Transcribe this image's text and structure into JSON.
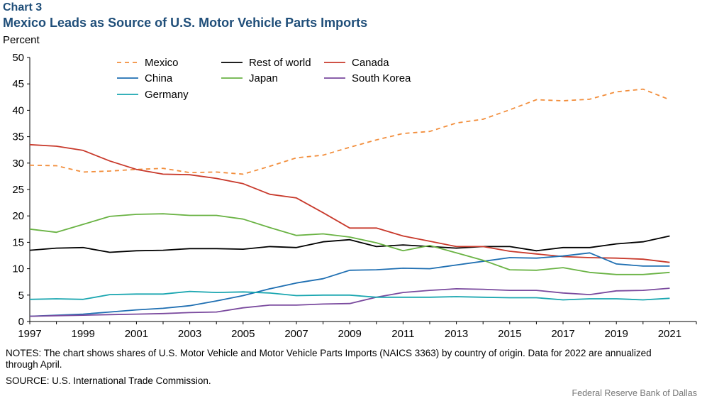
{
  "header": {
    "chart_number": "Chart 3",
    "title": "Mexico Leads as Source of U.S. Motor Vehicle Parts Imports",
    "unit": "Percent"
  },
  "footer": {
    "notes": "NOTES: The chart shows shares of U.S. Motor Vehicle and Motor Vehicle Parts Imports (NAICS 3363) by country of origin. Data for 2022 are annualized through April.",
    "source": "SOURCE: U.S. International Trade Commission.",
    "credit": "Federal Reserve Bank of Dallas"
  },
  "chart_data": {
    "type": "line",
    "title": "Mexico Leads as Source of U.S. Motor Vehicle Parts Imports",
    "ylabel": "Percent",
    "xlabel": "",
    "ylim": [
      0,
      50
    ],
    "xlim": [
      1997,
      2022
    ],
    "y_ticks": [
      0,
      5,
      10,
      15,
      20,
      25,
      30,
      35,
      40,
      45,
      50
    ],
    "x_tick_labels": [
      "1997",
      "1999",
      "2001",
      "2003",
      "2005",
      "2007",
      "2009",
      "2011",
      "2013",
      "2015",
      "2017",
      "2019",
      "2021"
    ],
    "grid": false,
    "legend_position": "top",
    "x": [
      1997,
      1998,
      1999,
      2000,
      2001,
      2002,
      2003,
      2004,
      2005,
      2006,
      2007,
      2008,
      2009,
      2010,
      2011,
      2012,
      2013,
      2014,
      2015,
      2016,
      2017,
      2018,
      2019,
      2020,
      2021,
      2022
    ],
    "series": [
      {
        "name": "Mexico",
        "color": "#f28e3c",
        "dashed": true,
        "values": [
          29.6,
          29.5,
          28.3,
          28.5,
          28.8,
          29.0,
          28.2,
          28.3,
          27.9,
          29.4,
          31.0,
          31.5,
          33.0,
          34.4,
          35.6,
          36.0,
          37.6,
          38.3,
          40.1,
          42.0,
          41.8,
          42.1,
          43.5,
          44.0,
          42.0,
          null
        ]
      },
      {
        "name": "Rest of world",
        "color": "#000000",
        "dashed": false,
        "values": [
          13.5,
          13.9,
          14.0,
          13.1,
          13.4,
          13.5,
          13.8,
          13.8,
          13.7,
          14.2,
          14.0,
          15.1,
          15.5,
          14.2,
          14.5,
          14.2,
          13.9,
          14.2,
          14.2,
          13.4,
          14.0,
          14.0,
          14.7,
          15.1,
          16.2,
          null
        ]
      },
      {
        "name": "Canada",
        "color": "#c8392b",
        "dashed": false,
        "values": [
          33.5,
          33.2,
          32.4,
          30.4,
          28.8,
          27.9,
          27.8,
          27.1,
          26.1,
          24.1,
          23.4,
          20.6,
          17.7,
          17.7,
          16.2,
          15.2,
          14.2,
          14.2,
          13.3,
          12.8,
          12.3,
          12.1,
          12.0,
          11.8,
          11.2,
          null
        ]
      },
      {
        "name": "China",
        "color": "#1f6fb2",
        "dashed": false,
        "values": [
          1.0,
          1.2,
          1.4,
          1.8,
          2.2,
          2.5,
          3.0,
          3.9,
          4.9,
          6.2,
          7.3,
          8.1,
          9.7,
          9.8,
          10.1,
          10.0,
          10.7,
          11.4,
          12.1,
          12.0,
          12.4,
          13.0,
          10.9,
          10.5,
          10.5,
          null
        ]
      },
      {
        "name": "Japan",
        "color": "#6ab344",
        "dashed": false,
        "values": [
          17.5,
          16.9,
          18.4,
          19.9,
          20.3,
          20.4,
          20.1,
          20.1,
          19.4,
          17.8,
          16.3,
          16.6,
          16.0,
          14.9,
          13.4,
          14.4,
          13.0,
          11.6,
          9.8,
          9.7,
          10.2,
          9.3,
          8.9,
          8.9,
          9.3,
          null
        ]
      },
      {
        "name": "South Korea",
        "color": "#7a4a9e",
        "dashed": false,
        "values": [
          1.0,
          1.1,
          1.2,
          1.3,
          1.4,
          1.5,
          1.7,
          1.8,
          2.6,
          3.1,
          3.1,
          3.3,
          3.4,
          4.6,
          5.5,
          5.9,
          6.2,
          6.1,
          5.9,
          5.9,
          5.4,
          5.1,
          5.8,
          5.9,
          6.3,
          null
        ]
      },
      {
        "name": "Germany",
        "color": "#1aa6b0",
        "dashed": false,
        "values": [
          4.2,
          4.3,
          4.2,
          5.1,
          5.2,
          5.2,
          5.7,
          5.5,
          5.6,
          5.4,
          4.9,
          5.0,
          5.0,
          4.6,
          4.6,
          4.6,
          4.7,
          4.6,
          4.5,
          4.5,
          4.1,
          4.3,
          4.3,
          4.1,
          4.4,
          null
        ]
      }
    ]
  }
}
